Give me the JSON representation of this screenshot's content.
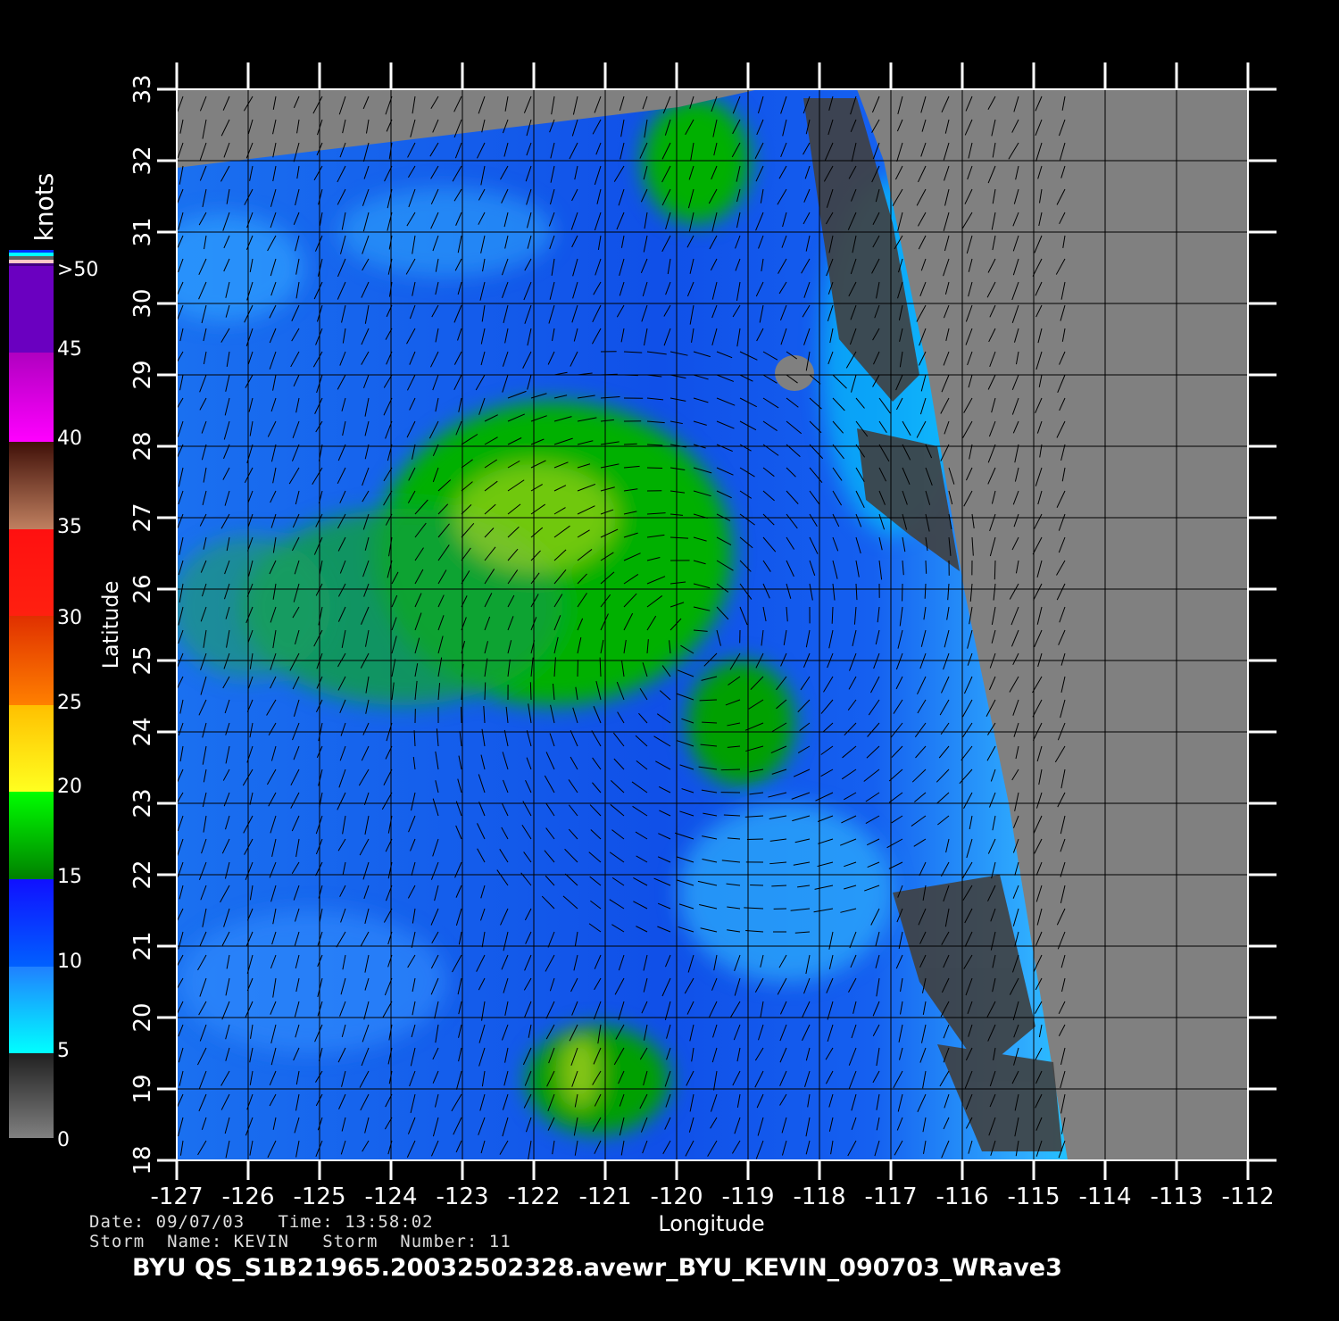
{
  "colorbar": {
    "unit": "knots",
    "labels": [
      ">50",
      "45",
      "40",
      "35",
      "30",
      "25",
      "20",
      "15",
      "10",
      "5",
      "0"
    ],
    "colors": {
      "over50": "#6a00c0",
      "magenta": "#ff00ff",
      "brown": "#5a2010",
      "red": "#ff1010",
      "orange": "#ff7000",
      "yellow": "#ffe020",
      "green": "#00e000",
      "blue": "#1040ff",
      "cyan": "#00ffff",
      "gray": "#808080"
    }
  },
  "map": {
    "xlabel": "Longitude",
    "ylabel": "Latitude",
    "lon_ticks": [
      "-127",
      "-126",
      "-125",
      "-124",
      "-123",
      "-122",
      "-121",
      "-120",
      "-119",
      "-118",
      "-117",
      "-116",
      "-115",
      "-114",
      "-113",
      "-112"
    ],
    "lat_ticks": [
      "18",
      "19",
      "20",
      "21",
      "22",
      "23",
      "24",
      "25",
      "26",
      "27",
      "28",
      "29",
      "30",
      "31",
      "32",
      "33"
    ],
    "land_color": "#808080",
    "grid": true
  },
  "info": {
    "date_line": "Date: 09/07/03   Time: 13:58:02",
    "storm_line": "Storm  Name: KEVIN   Storm  Number: 11",
    "file_title": "BYU  QS_S1B21965.20032502328.avewr_BYU_KEVIN_090703_WRave3"
  }
}
